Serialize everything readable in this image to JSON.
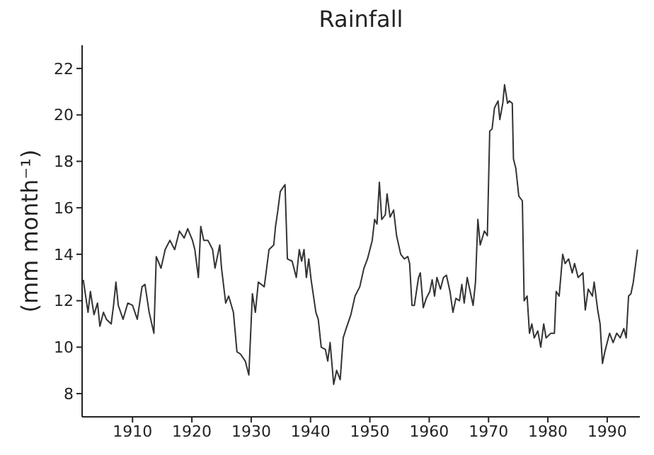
{
  "chart_data": {
    "type": "line",
    "title": "Rainfall",
    "ylabel": "(mm month⁻¹)",
    "x": [
      1901.7,
      1902.5,
      1902.9,
      1903.5,
      1904.1,
      1904.5,
      1905.1,
      1905.6,
      1906.4,
      1906.8,
      1907.2,
      1907.6,
      1908.4,
      1909.2,
      1910.0,
      1910.8,
      1911.6,
      1912.1,
      1912.8,
      1913.6,
      1914.0,
      1914.8,
      1915.5,
      1916.3,
      1917.1,
      1917.9,
      1918.7,
      1919.3,
      1920.1,
      1920.5,
      1921.1,
      1921.5,
      1922.0,
      1922.7,
      1923.5,
      1923.9,
      1924.7,
      1925.0,
      1925.7,
      1926.2,
      1927.0,
      1927.6,
      1928.2,
      1929.0,
      1929.6,
      1930.2,
      1930.7,
      1931.2,
      1932.2,
      1932.6,
      1933.0,
      1933.8,
      1934.1,
      1934.5,
      1934.9,
      1935.7,
      1936.1,
      1936.9,
      1937.6,
      1938.1,
      1938.5,
      1938.9,
      1939.3,
      1939.7,
      1940.1,
      1940.9,
      1941.3,
      1941.8,
      1942.5,
      1942.9,
      1943.3,
      1943.9,
      1944.4,
      1945.0,
      1945.5,
      1946.0,
      1946.8,
      1947.5,
      1948.3,
      1949.0,
      1949.6,
      1950.4,
      1950.8,
      1951.2,
      1951.6,
      1952.0,
      1952.6,
      1952.9,
      1953.4,
      1954.0,
      1954.5,
      1955.2,
      1955.8,
      1956.4,
      1956.7,
      1957.1,
      1957.5,
      1958.2,
      1958.5,
      1959.0,
      1959.5,
      1960.1,
      1960.5,
      1960.9,
      1961.3,
      1961.9,
      1962.4,
      1962.9,
      1963.5,
      1964.0,
      1964.5,
      1965.1,
      1965.5,
      1965.9,
      1966.4,
      1966.9,
      1967.4,
      1967.8,
      1968.2,
      1968.6,
      1969.3,
      1969.8,
      1970.2,
      1970.6,
      1971.0,
      1971.6,
      1971.9,
      1972.4,
      1972.7,
      1973.2,
      1973.5,
      1974.0,
      1974.2,
      1974.6,
      1975.1,
      1975.7,
      1976.0,
      1976.5,
      1976.9,
      1977.3,
      1977.7,
      1978.3,
      1978.8,
      1979.3,
      1979.7,
      1980.5,
      1981.1,
      1981.4,
      1981.9,
      1982.5,
      1982.9,
      1983.5,
      1984.1,
      1984.5,
      1985.1,
      1985.9,
      1986.3,
      1986.8,
      1987.5,
      1987.8,
      1988.4,
      1988.8,
      1989.2,
      1989.6,
      1990.0,
      1990.4,
      1991.0,
      1991.6,
      1992.2,
      1992.8,
      1993.2,
      1993.6,
      1994.0,
      1994.4,
      1994.8,
      1995.1
    ],
    "values": [
      12.9,
      11.5,
      12.4,
      11.4,
      11.9,
      10.9,
      11.5,
      11.2,
      11.0,
      11.8,
      12.8,
      11.8,
      11.2,
      11.9,
      11.8,
      11.2,
      12.6,
      12.7,
      11.5,
      10.6,
      13.9,
      13.4,
      14.2,
      14.6,
      14.2,
      15.0,
      14.7,
      15.1,
      14.6,
      14.2,
      13.0,
      15.2,
      14.6,
      14.6,
      14.2,
      13.4,
      14.4,
      13.4,
      11.9,
      12.2,
      11.5,
      9.8,
      9.7,
      9.4,
      8.8,
      12.3,
      11.5,
      12.8,
      12.6,
      13.4,
      14.2,
      14.4,
      15.2,
      15.9,
      16.7,
      17.0,
      13.8,
      13.7,
      13.0,
      14.2,
      13.7,
      14.2,
      13.0,
      13.8,
      12.9,
      11.5,
      11.2,
      10.0,
      9.9,
      9.4,
      10.2,
      8.4,
      9.0,
      8.6,
      10.4,
      10.8,
      11.4,
      12.2,
      12.6,
      13.4,
      13.8,
      14.6,
      15.5,
      15.3,
      17.1,
      15.5,
      15.7,
      16.6,
      15.6,
      15.9,
      14.8,
      14.0,
      13.8,
      13.9,
      13.6,
      11.8,
      11.8,
      13.0,
      13.2,
      11.7,
      12.1,
      12.4,
      12.9,
      12.2,
      13.0,
      12.5,
      13.0,
      13.1,
      12.4,
      11.5,
      12.1,
      12.0,
      12.7,
      11.9,
      13.0,
      12.4,
      11.8,
      12.8,
      15.5,
      14.4,
      15.0,
      14.8,
      19.3,
      19.4,
      20.3,
      20.6,
      19.8,
      20.5,
      21.3,
      20.5,
      20.6,
      20.5,
      18.1,
      17.7,
      16.5,
      16.3,
      12.0,
      12.2,
      10.6,
      11.0,
      10.4,
      10.7,
      10.0,
      11.0,
      10.4,
      10.6,
      10.6,
      12.4,
      12.2,
      14.0,
      13.6,
      13.8,
      13.2,
      13.6,
      13.0,
      13.2,
      11.6,
      12.5,
      12.2,
      12.8,
      11.6,
      11.0,
      9.3,
      9.8,
      10.2,
      10.6,
      10.2,
      10.6,
      10.4,
      10.8,
      10.4,
      12.2,
      12.3,
      12.8,
      13.6,
      14.2
    ],
    "color": "#333333",
    "xlim": [
      1901.5,
      1995.5
    ],
    "xticks": [
      1910,
      1920,
      1930,
      1940,
      1950,
      1960,
      1970,
      1980,
      1990
    ],
    "ylim": [
      7,
      23
    ],
    "yticks": [
      8,
      10,
      12,
      14,
      16,
      18,
      20,
      22
    ]
  }
}
